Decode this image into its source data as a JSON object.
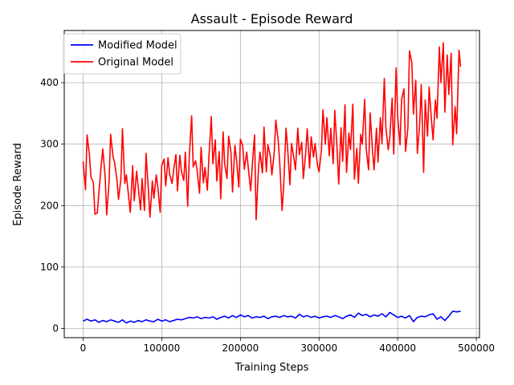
{
  "chart_data": {
    "type": "line",
    "title": "Assault - Episode Reward",
    "xlabel": "Training Steps",
    "ylabel": "Episode Reward",
    "xlim": [
      -24000,
      504000
    ],
    "ylim": [
      -15,
      485
    ],
    "xticks": [
      0,
      100000,
      200000,
      300000,
      400000,
      500000
    ],
    "xtick_labels": [
      "0",
      "100000",
      "200000",
      "300000",
      "400000",
      "500000"
    ],
    "yticks": [
      0,
      100,
      200,
      300,
      400
    ],
    "ytick_labels": [
      "0",
      "100",
      "200",
      "300",
      "400"
    ],
    "grid": true,
    "legend_position": "upper-left",
    "series": [
      {
        "name": "Modified Model",
        "color": "#0000ff",
        "points": [
          [
            0,
            12
          ],
          [
            5000,
            15
          ],
          [
            10000,
            12
          ],
          [
            15000,
            14
          ],
          [
            20000,
            10
          ],
          [
            25000,
            13
          ],
          [
            30000,
            11
          ],
          [
            35000,
            14
          ],
          [
            40000,
            12
          ],
          [
            45000,
            10
          ],
          [
            50000,
            14
          ],
          [
            55000,
            9
          ],
          [
            60000,
            12
          ],
          [
            65000,
            10
          ],
          [
            70000,
            13
          ],
          [
            75000,
            11
          ],
          [
            80000,
            14
          ],
          [
            85000,
            12
          ],
          [
            90000,
            11
          ],
          [
            95000,
            15
          ],
          [
            100000,
            12
          ],
          [
            105000,
            14
          ],
          [
            110000,
            11
          ],
          [
            115000,
            13
          ],
          [
            120000,
            15
          ],
          [
            125000,
            14
          ],
          [
            130000,
            16
          ],
          [
            135000,
            18
          ],
          [
            140000,
            17
          ],
          [
            145000,
            19
          ],
          [
            150000,
            16
          ],
          [
            155000,
            18
          ],
          [
            160000,
            17
          ],
          [
            165000,
            19
          ],
          [
            170000,
            15
          ],
          [
            175000,
            18
          ],
          [
            180000,
            20
          ],
          [
            185000,
            17
          ],
          [
            190000,
            21
          ],
          [
            195000,
            18
          ],
          [
            200000,
            22
          ],
          [
            205000,
            19
          ],
          [
            210000,
            21
          ],
          [
            215000,
            17
          ],
          [
            220000,
            19
          ],
          [
            225000,
            18
          ],
          [
            230000,
            20
          ],
          [
            235000,
            16
          ],
          [
            240000,
            19
          ],
          [
            245000,
            20
          ],
          [
            250000,
            18
          ],
          [
            255000,
            21
          ],
          [
            260000,
            19
          ],
          [
            265000,
            20
          ],
          [
            270000,
            17
          ],
          [
            275000,
            23
          ],
          [
            280000,
            19
          ],
          [
            285000,
            21
          ],
          [
            290000,
            18
          ],
          [
            295000,
            20
          ],
          [
            300000,
            17
          ],
          [
            305000,
            19
          ],
          [
            310000,
            20
          ],
          [
            315000,
            18
          ],
          [
            320000,
            21
          ],
          [
            325000,
            19
          ],
          [
            330000,
            16
          ],
          [
            335000,
            20
          ],
          [
            340000,
            22
          ],
          [
            345000,
            18
          ],
          [
            350000,
            25
          ],
          [
            355000,
            21
          ],
          [
            360000,
            23
          ],
          [
            365000,
            19
          ],
          [
            370000,
            22
          ],
          [
            375000,
            20
          ],
          [
            380000,
            24
          ],
          [
            385000,
            19
          ],
          [
            390000,
            26
          ],
          [
            395000,
            22
          ],
          [
            400000,
            18
          ],
          [
            405000,
            20
          ],
          [
            410000,
            17
          ],
          [
            415000,
            21
          ],
          [
            420000,
            11
          ],
          [
            425000,
            18
          ],
          [
            430000,
            20
          ],
          [
            435000,
            19
          ],
          [
            440000,
            22
          ],
          [
            445000,
            24
          ],
          [
            450000,
            15
          ],
          [
            455000,
            19
          ],
          [
            460000,
            13
          ],
          [
            465000,
            20
          ],
          [
            470000,
            28
          ],
          [
            475000,
            27
          ],
          [
            480000,
            28
          ]
        ]
      },
      {
        "name": "Original Model",
        "color": "#ff0000",
        "points": [
          [
            0,
            272
          ],
          [
            3000,
            226
          ],
          [
            5000,
            315
          ],
          [
            8000,
            283
          ],
          [
            10000,
            246
          ],
          [
            13000,
            238
          ],
          [
            15000,
            186
          ],
          [
            18000,
            188
          ],
          [
            20000,
            220
          ],
          [
            23000,
            266
          ],
          [
            25000,
            292
          ],
          [
            28000,
            247
          ],
          [
            30000,
            185
          ],
          [
            33000,
            239
          ],
          [
            35000,
            316
          ],
          [
            38000,
            280
          ],
          [
            40000,
            270
          ],
          [
            43000,
            242
          ],
          [
            45000,
            210
          ],
          [
            48000,
            243
          ],
          [
            50000,
            325
          ],
          [
            53000,
            236
          ],
          [
            55000,
            250
          ],
          [
            58000,
            213
          ],
          [
            60000,
            189
          ],
          [
            63000,
            265
          ],
          [
            65000,
            208
          ],
          [
            68000,
            256
          ],
          [
            70000,
            231
          ],
          [
            73000,
            193
          ],
          [
            75000,
            244
          ],
          [
            78000,
            192
          ],
          [
            80000,
            285
          ],
          [
            83000,
            225
          ],
          [
            85000,
            181
          ],
          [
            88000,
            240
          ],
          [
            90000,
            212
          ],
          [
            93000,
            250
          ],
          [
            95000,
            230
          ],
          [
            98000,
            189
          ],
          [
            100000,
            265
          ],
          [
            103000,
            276
          ],
          [
            105000,
            232
          ],
          [
            108000,
            278
          ],
          [
            110000,
            251
          ],
          [
            113000,
            236
          ],
          [
            115000,
            256
          ],
          [
            118000,
            283
          ],
          [
            120000,
            224
          ],
          [
            123000,
            282
          ],
          [
            125000,
            256
          ],
          [
            128000,
            241
          ],
          [
            130000,
            287
          ],
          [
            133000,
            199
          ],
          [
            135000,
            280
          ],
          [
            138000,
            346
          ],
          [
            140000,
            263
          ],
          [
            143000,
            273
          ],
          [
            145000,
            257
          ],
          [
            148000,
            220
          ],
          [
            150000,
            295
          ],
          [
            153000,
            237
          ],
          [
            155000,
            262
          ],
          [
            158000,
            225
          ],
          [
            160000,
            280
          ],
          [
            163000,
            345
          ],
          [
            165000,
            268
          ],
          [
            168000,
            307
          ],
          [
            170000,
            240
          ],
          [
            173000,
            288
          ],
          [
            175000,
            211
          ],
          [
            178000,
            320
          ],
          [
            180000,
            268
          ],
          [
            183000,
            244
          ],
          [
            185000,
            313
          ],
          [
            188000,
            287
          ],
          [
            190000,
            222
          ],
          [
            193000,
            298
          ],
          [
            195000,
            275
          ],
          [
            198000,
            230
          ],
          [
            200000,
            308
          ],
          [
            203000,
            297
          ],
          [
            205000,
            259
          ],
          [
            208000,
            287
          ],
          [
            210000,
            262
          ],
          [
            213000,
            224
          ],
          [
            215000,
            263
          ],
          [
            218000,
            315
          ],
          [
            220000,
            177
          ],
          [
            223000,
            261
          ],
          [
            225000,
            287
          ],
          [
            228000,
            253
          ],
          [
            230000,
            328
          ],
          [
            233000,
            255
          ],
          [
            235000,
            299
          ],
          [
            238000,
            281
          ],
          [
            240000,
            250
          ],
          [
            243000,
            286
          ],
          [
            245000,
            339
          ],
          [
            248000,
            307
          ],
          [
            250000,
            270
          ],
          [
            253000,
            192
          ],
          [
            255000,
            231
          ],
          [
            258000,
            326
          ],
          [
            260000,
            294
          ],
          [
            263000,
            234
          ],
          [
            265000,
            301
          ],
          [
            268000,
            278
          ],
          [
            270000,
            258
          ],
          [
            273000,
            326
          ],
          [
            275000,
            283
          ],
          [
            278000,
            303
          ],
          [
            280000,
            244
          ],
          [
            283000,
            285
          ],
          [
            285000,
            325
          ],
          [
            288000,
            261
          ],
          [
            290000,
            312
          ],
          [
            293000,
            279
          ],
          [
            295000,
            301
          ],
          [
            298000,
            266
          ],
          [
            300000,
            255
          ],
          [
            303000,
            290
          ],
          [
            305000,
            356
          ],
          [
            308000,
            300
          ],
          [
            310000,
            343
          ],
          [
            313000,
            281
          ],
          [
            315000,
            326
          ],
          [
            318000,
            268
          ],
          [
            320000,
            355
          ],
          [
            323000,
            291
          ],
          [
            325000,
            235
          ],
          [
            328000,
            327
          ],
          [
            330000,
            272
          ],
          [
            333000,
            364
          ],
          [
            335000,
            254
          ],
          [
            338000,
            318
          ],
          [
            340000,
            291
          ],
          [
            343000,
            365
          ],
          [
            345000,
            243
          ],
          [
            348000,
            293
          ],
          [
            350000,
            236
          ],
          [
            353000,
            316
          ],
          [
            355000,
            300
          ],
          [
            358000,
            373
          ],
          [
            360000,
            292
          ],
          [
            363000,
            258
          ],
          [
            365000,
            351
          ],
          [
            368000,
            289
          ],
          [
            370000,
            258
          ],
          [
            373000,
            326
          ],
          [
            375000,
            271
          ],
          [
            378000,
            343
          ],
          [
            380000,
            301
          ],
          [
            383000,
            407
          ],
          [
            385000,
            327
          ],
          [
            388000,
            291
          ],
          [
            390000,
            312
          ],
          [
            393000,
            375
          ],
          [
            395000,
            284
          ],
          [
            398000,
            424
          ],
          [
            400000,
            345
          ],
          [
            403000,
            299
          ],
          [
            405000,
            373
          ],
          [
            408000,
            390
          ],
          [
            410000,
            288
          ],
          [
            413000,
            327
          ],
          [
            415000,
            452
          ],
          [
            418000,
            433
          ],
          [
            420000,
            349
          ],
          [
            423000,
            404
          ],
          [
            425000,
            285
          ],
          [
            428000,
            333
          ],
          [
            430000,
            397
          ],
          [
            433000,
            254
          ],
          [
            435000,
            372
          ],
          [
            438000,
            313
          ],
          [
            440000,
            393
          ],
          [
            443000,
            338
          ],
          [
            445000,
            307
          ],
          [
            448000,
            372
          ],
          [
            450000,
            342
          ],
          [
            453000,
            458
          ],
          [
            455000,
            400
          ],
          [
            458000,
            465
          ],
          [
            460000,
            352
          ],
          [
            463000,
            445
          ],
          [
            465000,
            381
          ],
          [
            468000,
            448
          ],
          [
            470000,
            299
          ],
          [
            473000,
            361
          ],
          [
            475000,
            317
          ],
          [
            478000,
            453
          ],
          [
            480000,
            426
          ]
        ]
      }
    ]
  }
}
